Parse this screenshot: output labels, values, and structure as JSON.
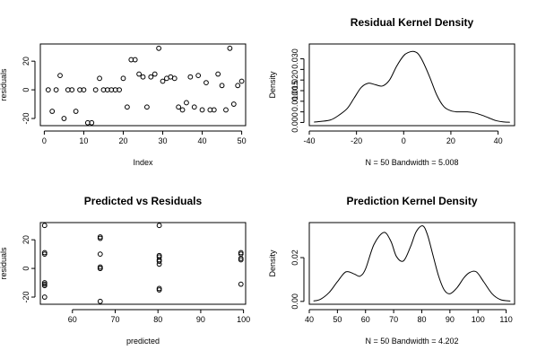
{
  "chart_data": [
    {
      "type": "scatter",
      "title": "",
      "xlabel": "Index",
      "ylabel": "residuals",
      "xlim": [
        -1,
        51
      ],
      "ylim": [
        -25,
        32
      ],
      "xticks": [
        0,
        10,
        20,
        30,
        40,
        50
      ],
      "yticks": [
        -20,
        0,
        20
      ],
      "grid": false,
      "x": [
        1,
        2,
        3,
        4,
        5,
        6,
        7,
        8,
        9,
        10,
        11,
        12,
        13,
        14,
        15,
        16,
        17,
        18,
        19,
        20,
        21,
        22,
        23,
        24,
        25,
        26,
        27,
        28,
        29,
        30,
        31,
        32,
        33,
        34,
        35,
        36,
        37,
        38,
        39,
        40,
        41,
        42,
        43,
        44,
        45,
        46,
        47,
        48,
        49,
        50
      ],
      "y": [
        0,
        -15,
        0,
        10,
        -20,
        0,
        0,
        -15,
        0,
        0,
        -23,
        -23,
        0,
        8,
        0,
        0,
        0,
        0,
        0,
        8,
        -12,
        21,
        21,
        11,
        9,
        -12,
        9,
        11,
        29,
        6,
        8,
        9,
        8,
        -12,
        -14,
        -9,
        9,
        -12,
        10,
        -14,
        5,
        -14,
        -14,
        11,
        3,
        -14,
        29,
        -10,
        3,
        6
      ]
    },
    {
      "type": "line",
      "title": "Residual Kernel Density",
      "xlabel": "N = 50   Bandwidth = 5.008",
      "ylabel": "Density",
      "xlim": [
        -40,
        47
      ],
      "ylim": [
        -0.0015,
        0.037
      ],
      "xticks": [
        -40,
        -20,
        0,
        20,
        40
      ],
      "yticks": [
        0.0,
        0.005,
        0.01,
        0.015,
        0.02,
        0.025,
        0.03
      ],
      "ytick_labels": [
        "0.000",
        "",
        "0.010",
        "0.015",
        "0.020",
        "",
        "0.030"
      ],
      "grid": false,
      "x": [
        -38,
        -35,
        -31,
        -28,
        -24,
        -21,
        -18,
        -15,
        -12,
        -9,
        -6,
        -3,
        0,
        2,
        4,
        6,
        8,
        11,
        14,
        17,
        20,
        23,
        27,
        30,
        33,
        36,
        39,
        42,
        45
      ],
      "y": [
        0.0002,
        0.0005,
        0.0012,
        0.003,
        0.0065,
        0.0115,
        0.0165,
        0.0185,
        0.0178,
        0.0172,
        0.02,
        0.0265,
        0.0315,
        0.033,
        0.0335,
        0.0325,
        0.029,
        0.0215,
        0.013,
        0.0075,
        0.0055,
        0.005,
        0.005,
        0.0045,
        0.0035,
        0.0022,
        0.0009,
        0.0003,
        0.0001
      ]
    },
    {
      "type": "scatter",
      "title": "Predicted vs Residuals",
      "xlabel": "predicted",
      "ylabel": "residuals",
      "xlim": [
        52.5,
        100.5
      ],
      "ylim": [
        -25,
        32
      ],
      "xticks": [
        60,
        70,
        80,
        90,
        100
      ],
      "yticks": [
        -20,
        0,
        20
      ],
      "grid": false,
      "x": [
        53.5,
        53.5,
        53.5,
        53.5,
        53.5,
        53.5,
        53.5,
        66.5,
        66.5,
        66.5,
        66.5,
        66.5,
        66.5,
        66.5,
        80.3,
        80.3,
        80.3,
        80.3,
        80.3,
        80.3,
        80.3,
        80.3,
        99.4,
        99.4,
        99.4,
        99.4,
        99.4
      ],
      "y": [
        30,
        11,
        10,
        -10,
        -11,
        -12,
        -20,
        22,
        21,
        10,
        0,
        0,
        1,
        -23,
        30,
        9,
        8,
        6,
        5,
        3,
        -14,
        -15,
        11,
        10,
        7,
        6,
        -11
      ]
    },
    {
      "type": "line",
      "title": "Prediction Kernel Density",
      "xlabel": "N = 50   Bandwidth = 4.202",
      "ylabel": "Density",
      "xlim": [
        40,
        113
      ],
      "ylim": [
        -0.0013,
        0.036
      ],
      "xticks": [
        40,
        50,
        60,
        70,
        80,
        90,
        100,
        110
      ],
      "yticks": [
        0.0,
        0.02
      ],
      "ytick_labels": [
        "0.00",
        "0.02"
      ],
      "grid": false,
      "x": [
        41.5,
        44,
        47,
        50,
        53,
        56,
        58,
        60,
        63,
        66.5,
        69,
        71,
        73.5,
        76,
        78,
        80.3,
        82,
        84,
        86,
        88,
        90,
        92.5,
        95,
        97,
        99.4,
        102,
        105,
        108,
        111.5
      ],
      "y": [
        0.0002,
        0.001,
        0.004,
        0.009,
        0.0135,
        0.0125,
        0.0115,
        0.0148,
        0.026,
        0.0315,
        0.0275,
        0.0205,
        0.0185,
        0.025,
        0.0318,
        0.0345,
        0.0305,
        0.021,
        0.0115,
        0.0052,
        0.0035,
        0.0062,
        0.0108,
        0.0132,
        0.0135,
        0.009,
        0.0035,
        0.0008,
        0.0002
      ]
    }
  ]
}
